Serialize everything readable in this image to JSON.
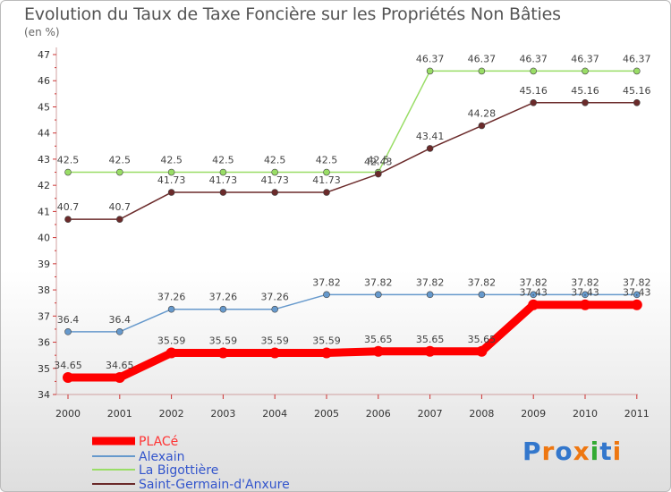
{
  "chart_data": {
    "type": "line",
    "title": "Evolution du Taux de Taxe Foncière sur les Propriétés Non Bâties",
    "subtitle": "(en %)",
    "x": [
      "2000",
      "2001",
      "2002",
      "2003",
      "2004",
      "2005",
      "2006",
      "2007",
      "2008",
      "2009",
      "2010",
      "2011"
    ],
    "yticks": [
      34,
      35,
      36,
      37,
      38,
      39,
      40,
      41,
      42,
      43,
      44,
      45,
      46,
      47
    ],
    "ylim": [
      34,
      47
    ],
    "grid": false,
    "legend_position": "bottom-left",
    "series": [
      {
        "name": "PLACé",
        "color": "#ff0000",
        "values": [
          34.65,
          34.65,
          35.59,
          35.59,
          35.59,
          35.59,
          35.65,
          35.65,
          35.65,
          37.43,
          37.43,
          37.43
        ],
        "labels": [
          "34.65",
          "34.65",
          "35.59",
          "35.59",
          "35.59",
          "35.59",
          "35.65",
          "35.65",
          "35.65",
          "37.43",
          "37.43",
          "37.43"
        ]
      },
      {
        "name": "Alexain",
        "color": "#6699cc",
        "values": [
          36.4,
          36.4,
          37.26,
          37.26,
          37.26,
          37.82,
          37.82,
          37.82,
          37.82,
          37.82,
          37.82,
          37.82
        ],
        "labels": [
          "36.4",
          "36.4",
          "37.26",
          "37.26",
          "37.26",
          "37.82",
          "37.82",
          "37.82",
          "37.82",
          "37.82",
          "37.82",
          "37.82"
        ]
      },
      {
        "name": "La Bigottière",
        "color": "#99dd66",
        "values": [
          42.5,
          42.5,
          42.5,
          42.5,
          42.5,
          42.5,
          42.5,
          46.37,
          46.37,
          46.37,
          46.37,
          46.37
        ],
        "labels": [
          "42.5",
          "42.5",
          "42.5",
          "42.5",
          "42.5",
          "42.5",
          "42.5",
          "46.37",
          "46.37",
          "46.37",
          "46.37",
          "46.37"
        ]
      },
      {
        "name": "Saint-Germain-d'Anxure",
        "color": "#6b2a2a",
        "values": [
          40.7,
          40.7,
          41.73,
          41.73,
          41.73,
          41.73,
          42.43,
          43.41,
          44.28,
          45.16,
          45.16,
          45.16
        ],
        "labels": [
          "40.7",
          "40.7",
          "41.73",
          "41.73",
          "41.73",
          "41.73",
          "42.43",
          "43.41",
          "44.28",
          "45.16",
          "45.16",
          "45.16"
        ]
      }
    ]
  },
  "logo": {
    "text": "Proxiti"
  }
}
